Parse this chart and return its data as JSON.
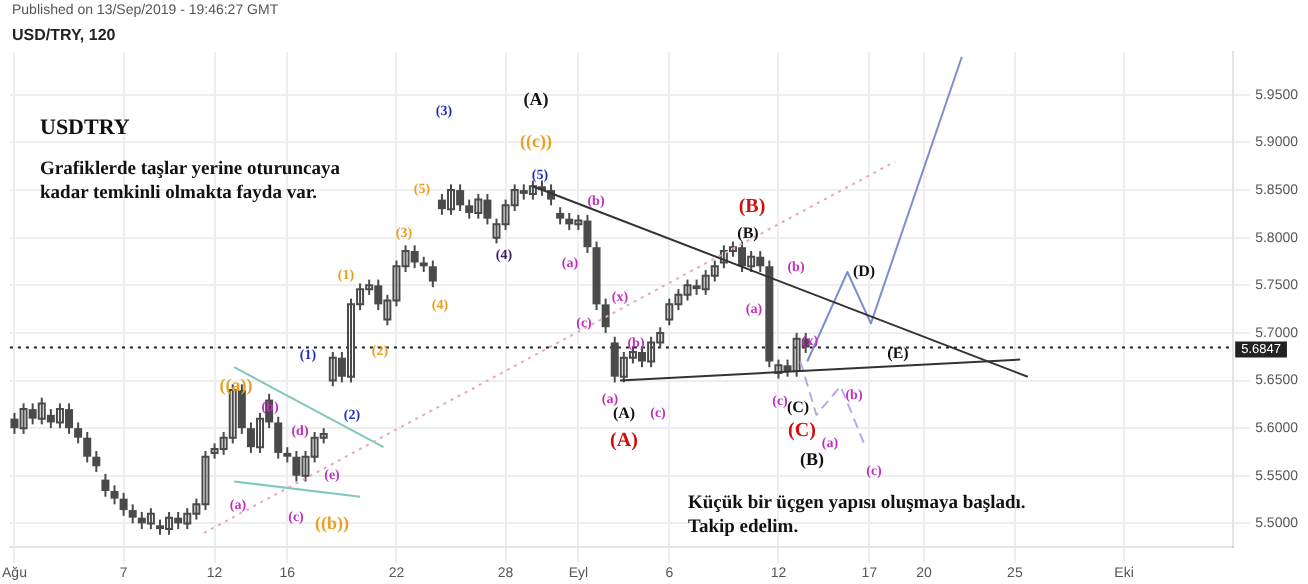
{
  "chart_data": {
    "type": "candlestick",
    "title": "USD/TRY, 120",
    "subtitle": "Published on 13/Sep/2019 - 19:46:27 GMT",
    "xlim": [
      "2019-07-31T18:00",
      "2019-10-07T00:00"
    ],
    "xticks": [
      {
        "value": "2019-08-01",
        "label": "Ağu"
      },
      {
        "value": "2019-08-07",
        "label": "7"
      },
      {
        "value": "2019-08-12",
        "label": "12"
      },
      {
        "value": "2019-08-16",
        "label": "16"
      },
      {
        "value": "2019-08-22",
        "label": "22"
      },
      {
        "value": "2019-08-28",
        "label": "28"
      },
      {
        "value": "2019-09-01",
        "label": "Eyl"
      },
      {
        "value": "2019-09-06",
        "label": "6"
      },
      {
        "value": "2019-09-12",
        "label": "12"
      },
      {
        "value": "2019-09-17",
        "label": "17"
      },
      {
        "value": "2019-09-20",
        "label": "20"
      },
      {
        "value": "2019-09-25",
        "label": "25"
      },
      {
        "value": "2019-10-01",
        "label": "Eki"
      }
    ],
    "ylim": [
      5.475,
      5.995
    ],
    "yticks": [
      {
        "value": 5.5,
        "label": "5.5000"
      },
      {
        "value": 5.55,
        "label": "5.5500"
      },
      {
        "value": 5.6,
        "label": "5.6000"
      },
      {
        "value": 5.65,
        "label": "5.6500"
      },
      {
        "value": 5.7,
        "label": "5.7000"
      },
      {
        "value": 5.75,
        "label": "5.7500"
      },
      {
        "value": 5.8,
        "label": "5.8000"
      },
      {
        "value": 5.85,
        "label": "5.8500"
      },
      {
        "value": 5.9,
        "label": "5.9000"
      },
      {
        "value": 5.95,
        "label": "5.9500"
      }
    ],
    "grid": true,
    "legend": false,
    "marker": "none",
    "ref_lines": [
      {
        "axis": "y",
        "value": 5.6847,
        "label": "5.6847",
        "color": "#222222",
        "line_style": "dotted"
      }
    ],
    "series": [
      {
        "color": "#4a4a4a",
        "x": [
          "2019-08-01T00:00",
          "2019-08-01T12:00",
          "2019-08-02T00:00",
          "2019-08-02T12:00",
          "2019-08-03T00:00",
          "2019-08-03T12:00",
          "2019-08-04T00:00",
          "2019-08-04T12:00",
          "2019-08-05T00:00",
          "2019-08-05T12:00",
          "2019-08-06T00:00",
          "2019-08-06T12:00",
          "2019-08-07T00:00",
          "2019-08-07T12:00",
          "2019-08-08T00:00",
          "2019-08-08T12:00",
          "2019-08-09T00:00",
          "2019-08-09T12:00",
          "2019-08-10T00:00",
          "2019-08-10T12:00",
          "2019-08-11T00:00",
          "2019-08-11T12:00",
          "2019-08-12T00:00",
          "2019-08-12T12:00",
          "2019-08-13T00:00",
          "2019-08-13T12:00",
          "2019-08-14T00:00",
          "2019-08-14T12:00",
          "2019-08-15T00:00",
          "2019-08-15T12:00",
          "2019-08-16T00:00",
          "2019-08-16T12:00",
          "2019-08-17T00:00",
          "2019-08-17T12:00",
          "2019-08-18T00:00",
          "2019-08-18T12:00",
          "2019-08-19T00:00",
          "2019-08-19T12:00",
          "2019-08-20T00:00",
          "2019-08-20T12:00",
          "2019-08-21T00:00",
          "2019-08-21T12:00",
          "2019-08-22T00:00",
          "2019-08-22T12:00",
          "2019-08-23T00:00",
          "2019-08-23T12:00",
          "2019-08-24T00:00",
          "2019-08-24T12:00",
          "2019-08-25T00:00",
          "2019-08-25T12:00",
          "2019-08-26T00:00",
          "2019-08-26T12:00",
          "2019-08-27T00:00",
          "2019-08-27T12:00",
          "2019-08-28T00:00",
          "2019-08-28T12:00",
          "2019-08-29T00:00",
          "2019-08-29T12:00",
          "2019-08-30T00:00",
          "2019-08-30T12:00",
          "2019-08-31T00:00",
          "2019-08-31T12:00",
          "2019-09-01T00:00",
          "2019-09-01T12:00",
          "2019-09-02T00:00",
          "2019-09-02T12:00",
          "2019-09-03T00:00",
          "2019-09-03T12:00",
          "2019-09-04T00:00",
          "2019-09-04T12:00",
          "2019-09-05T00:00",
          "2019-09-05T12:00",
          "2019-09-06T00:00",
          "2019-09-06T12:00",
          "2019-09-07T00:00",
          "2019-09-07T12:00",
          "2019-09-08T00:00",
          "2019-09-08T12:00",
          "2019-09-09T00:00",
          "2019-09-09T12:00",
          "2019-09-10T00:00",
          "2019-09-10T12:00",
          "2019-09-11T00:00",
          "2019-09-11T12:00",
          "2019-09-12T00:00",
          "2019-09-12T12:00",
          "2019-09-13T00:00",
          "2019-09-13T12:00"
        ],
        "ohlc": [
          [
            5.61,
            5.616,
            5.594,
            5.6
          ],
          [
            5.6,
            5.626,
            5.594,
            5.62
          ],
          [
            5.62,
            5.626,
            5.604,
            5.61
          ],
          [
            5.61,
            5.632,
            5.604,
            5.626
          ],
          [
            5.614,
            5.62,
            5.6,
            5.606
          ],
          [
            5.606,
            5.626,
            5.6,
            5.62
          ],
          [
            5.62,
            5.626,
            5.594,
            5.6
          ],
          [
            5.6,
            5.606,
            5.584,
            5.59
          ],
          [
            5.59,
            5.596,
            5.564,
            5.57
          ],
          [
            5.57,
            5.576,
            5.554,
            5.56
          ],
          [
            5.546,
            5.552,
            5.528,
            5.534
          ],
          [
            5.534,
            5.54,
            5.52,
            5.526
          ],
          [
            5.526,
            5.532,
            5.508,
            5.514
          ],
          [
            5.514,
            5.52,
            5.5,
            5.506
          ],
          [
            5.506,
            5.512,
            5.494,
            5.5
          ],
          [
            5.5,
            5.516,
            5.494,
            5.51
          ],
          [
            5.498,
            5.504,
            5.488,
            5.494
          ],
          [
            5.494,
            5.512,
            5.488,
            5.506
          ],
          [
            5.506,
            5.512,
            5.494,
            5.5
          ],
          [
            5.5,
            5.516,
            5.494,
            5.51
          ],
          [
            5.51,
            5.526,
            5.504,
            5.52
          ],
          [
            5.52,
            5.576,
            5.514,
            5.57
          ],
          [
            5.574,
            5.584,
            5.568,
            5.578
          ],
          [
            5.578,
            5.596,
            5.572,
            5.59
          ],
          [
            5.59,
            5.646,
            5.584,
            5.64
          ],
          [
            5.64,
            5.646,
            5.594,
            5.6
          ],
          [
            5.6,
            5.606,
            5.574,
            5.58
          ],
          [
            5.58,
            5.616,
            5.574,
            5.61
          ],
          [
            5.63,
            5.636,
            5.6,
            5.606
          ],
          [
            5.606,
            5.612,
            5.568,
            5.574
          ],
          [
            5.574,
            5.58,
            5.564,
            5.57
          ],
          [
            5.57,
            5.576,
            5.544,
            5.55
          ],
          [
            5.55,
            5.576,
            5.544,
            5.57
          ],
          [
            5.57,
            5.596,
            5.564,
            5.59
          ],
          [
            5.59,
            5.6,
            5.584,
            5.594
          ],
          [
            5.65,
            5.68,
            5.644,
            5.674
          ],
          [
            5.674,
            5.68,
            5.648,
            5.654
          ],
          [
            5.654,
            5.736,
            5.648,
            5.73
          ],
          [
            5.73,
            5.752,
            5.724,
            5.746
          ],
          [
            5.746,
            5.756,
            5.74,
            5.75
          ],
          [
            5.75,
            5.756,
            5.724,
            5.73
          ],
          [
            5.714,
            5.74,
            5.708,
            5.734
          ],
          [
            5.734,
            5.776,
            5.728,
            5.77
          ],
          [
            5.77,
            5.792,
            5.764,
            5.786
          ],
          [
            5.786,
            5.792,
            5.768,
            5.774
          ],
          [
            5.774,
            5.78,
            5.764,
            5.77
          ],
          [
            5.77,
            5.776,
            5.748,
            5.754
          ],
          [
            5.84,
            5.846,
            5.824,
            5.83
          ],
          [
            5.83,
            5.856,
            5.824,
            5.85
          ],
          [
            5.85,
            5.856,
            5.828,
            5.834
          ],
          [
            5.834,
            5.84,
            5.82,
            5.826
          ],
          [
            5.826,
            5.846,
            5.82,
            5.84
          ],
          [
            5.84,
            5.846,
            5.814,
            5.82
          ],
          [
            5.8,
            5.82,
            5.794,
            5.814
          ],
          [
            5.814,
            5.84,
            5.808,
            5.834
          ],
          [
            5.834,
            5.856,
            5.828,
            5.85
          ],
          [
            5.85,
            5.856,
            5.84,
            5.846
          ],
          [
            5.846,
            5.86,
            5.84,
            5.854
          ],
          [
            5.854,
            5.86,
            5.844,
            5.85
          ],
          [
            5.85,
            5.856,
            5.834,
            5.84
          ],
          [
            5.826,
            5.832,
            5.814,
            5.82
          ],
          [
            5.82,
            5.826,
            5.808,
            5.814
          ],
          [
            5.814,
            5.824,
            5.808,
            5.818
          ],
          [
            5.818,
            5.824,
            5.784,
            5.79
          ],
          [
            5.79,
            5.796,
            5.724,
            5.73
          ],
          [
            5.73,
            5.736,
            5.7,
            5.706
          ],
          [
            5.69,
            5.696,
            5.648,
            5.654
          ],
          [
            5.654,
            5.68,
            5.648,
            5.674
          ],
          [
            5.674,
            5.686,
            5.668,
            5.68
          ],
          [
            5.68,
            5.686,
            5.664,
            5.67
          ],
          [
            5.67,
            5.696,
            5.664,
            5.69
          ],
          [
            5.69,
            5.706,
            5.684,
            5.7
          ],
          [
            5.714,
            5.736,
            5.708,
            5.73
          ],
          [
            5.73,
            5.746,
            5.724,
            5.74
          ],
          [
            5.74,
            5.756,
            5.734,
            5.75
          ],
          [
            5.75,
            5.756,
            5.74,
            5.746
          ],
          [
            5.746,
            5.766,
            5.74,
            5.76
          ],
          [
            5.76,
            5.776,
            5.754,
            5.77
          ],
          [
            5.774,
            5.792,
            5.768,
            5.786
          ],
          [
            5.786,
            5.796,
            5.78,
            5.79
          ],
          [
            5.79,
            5.796,
            5.764,
            5.77
          ],
          [
            5.77,
            5.786,
            5.764,
            5.78
          ],
          [
            5.78,
            5.786,
            5.764,
            5.77
          ],
          [
            5.77,
            5.776,
            5.664,
            5.67
          ],
          [
            5.658,
            5.672,
            5.652,
            5.666
          ],
          [
            5.666,
            5.672,
            5.654,
            5.66
          ],
          [
            5.66,
            5.7,
            5.654,
            5.694
          ],
          [
            5.694,
            5.7,
            5.679,
            5.6847
          ]
        ]
      },
      {
        "type": "line",
        "color": "#333333",
        "x": [
          "2019-08-29T12:00",
          "2019-09-25T17:00"
        ],
        "values": [
          5.854,
          5.654
        ]
      },
      {
        "type": "line",
        "color": "#333333",
        "x": [
          "2019-09-03T07:00",
          "2019-09-25T07:00"
        ],
        "values": [
          5.65,
          5.672
        ]
      },
      {
        "type": "line",
        "color": "#e8a8b8",
        "line_style": "dotted",
        "x": [
          "2019-08-11T10:00",
          "2019-09-18T10:00"
        ],
        "values": [
          5.49,
          5.88
        ]
      },
      {
        "type": "line",
        "color": "#80c8bc",
        "x": [
          "2019-08-13T02:00",
          "2019-08-21T07:00"
        ],
        "values": [
          5.664,
          5.58
        ]
      },
      {
        "type": "line",
        "color": "#80c8bc",
        "x": [
          "2019-08-13T02:00",
          "2019-08-20T00:00"
        ],
        "values": [
          5.544,
          5.528
        ]
      },
      {
        "type": "line",
        "color": "#7b8fd0",
        "x": [
          "2019-09-13T14:00",
          "2019-09-15T19:00",
          "2019-09-17T02:00",
          "2019-09-22T02:00"
        ],
        "values": [
          5.67,
          5.764,
          5.71,
          5.99
        ]
      },
      {
        "type": "line",
        "color": "#b4ace6",
        "line_style": "dashed",
        "x": [
          "2019-09-13T05:00",
          "2019-09-14T02:00",
          "2019-09-15T10:00",
          "2019-09-16T17:00"
        ],
        "values": [
          5.67,
          5.614,
          5.644,
          5.584
        ]
      }
    ],
    "annotations": [
      "USDTRY",
      "Grafiklerde taşlar yerine oturuncaya\nkadar temkinli olmakta fayda var.",
      "Küçük bir üçgen yapısı oluşmaya başladı.\nTakip edelim.",
      "(A)",
      "((c))",
      "(3)",
      "(5)",
      "(5)",
      "(3)",
      "(1)",
      "(4)",
      "(4)",
      "(2)",
      "(1)",
      "(2)",
      "((a))",
      "(b)",
      "(d)",
      "(a)",
      "(e)",
      "(c)",
      "((b))",
      "(b)",
      "(a)",
      "(x)",
      "(c)",
      "(b)",
      "(a)",
      "(A)",
      "(A)",
      "(c)",
      "(B)",
      "(B)",
      "(b)",
      "(a)",
      "(x)",
      "(c)",
      "(C)",
      "(C)",
      "(B)",
      "(a)",
      "(b)",
      "(c)",
      "(D)",
      "(E)"
    ]
  }
}
